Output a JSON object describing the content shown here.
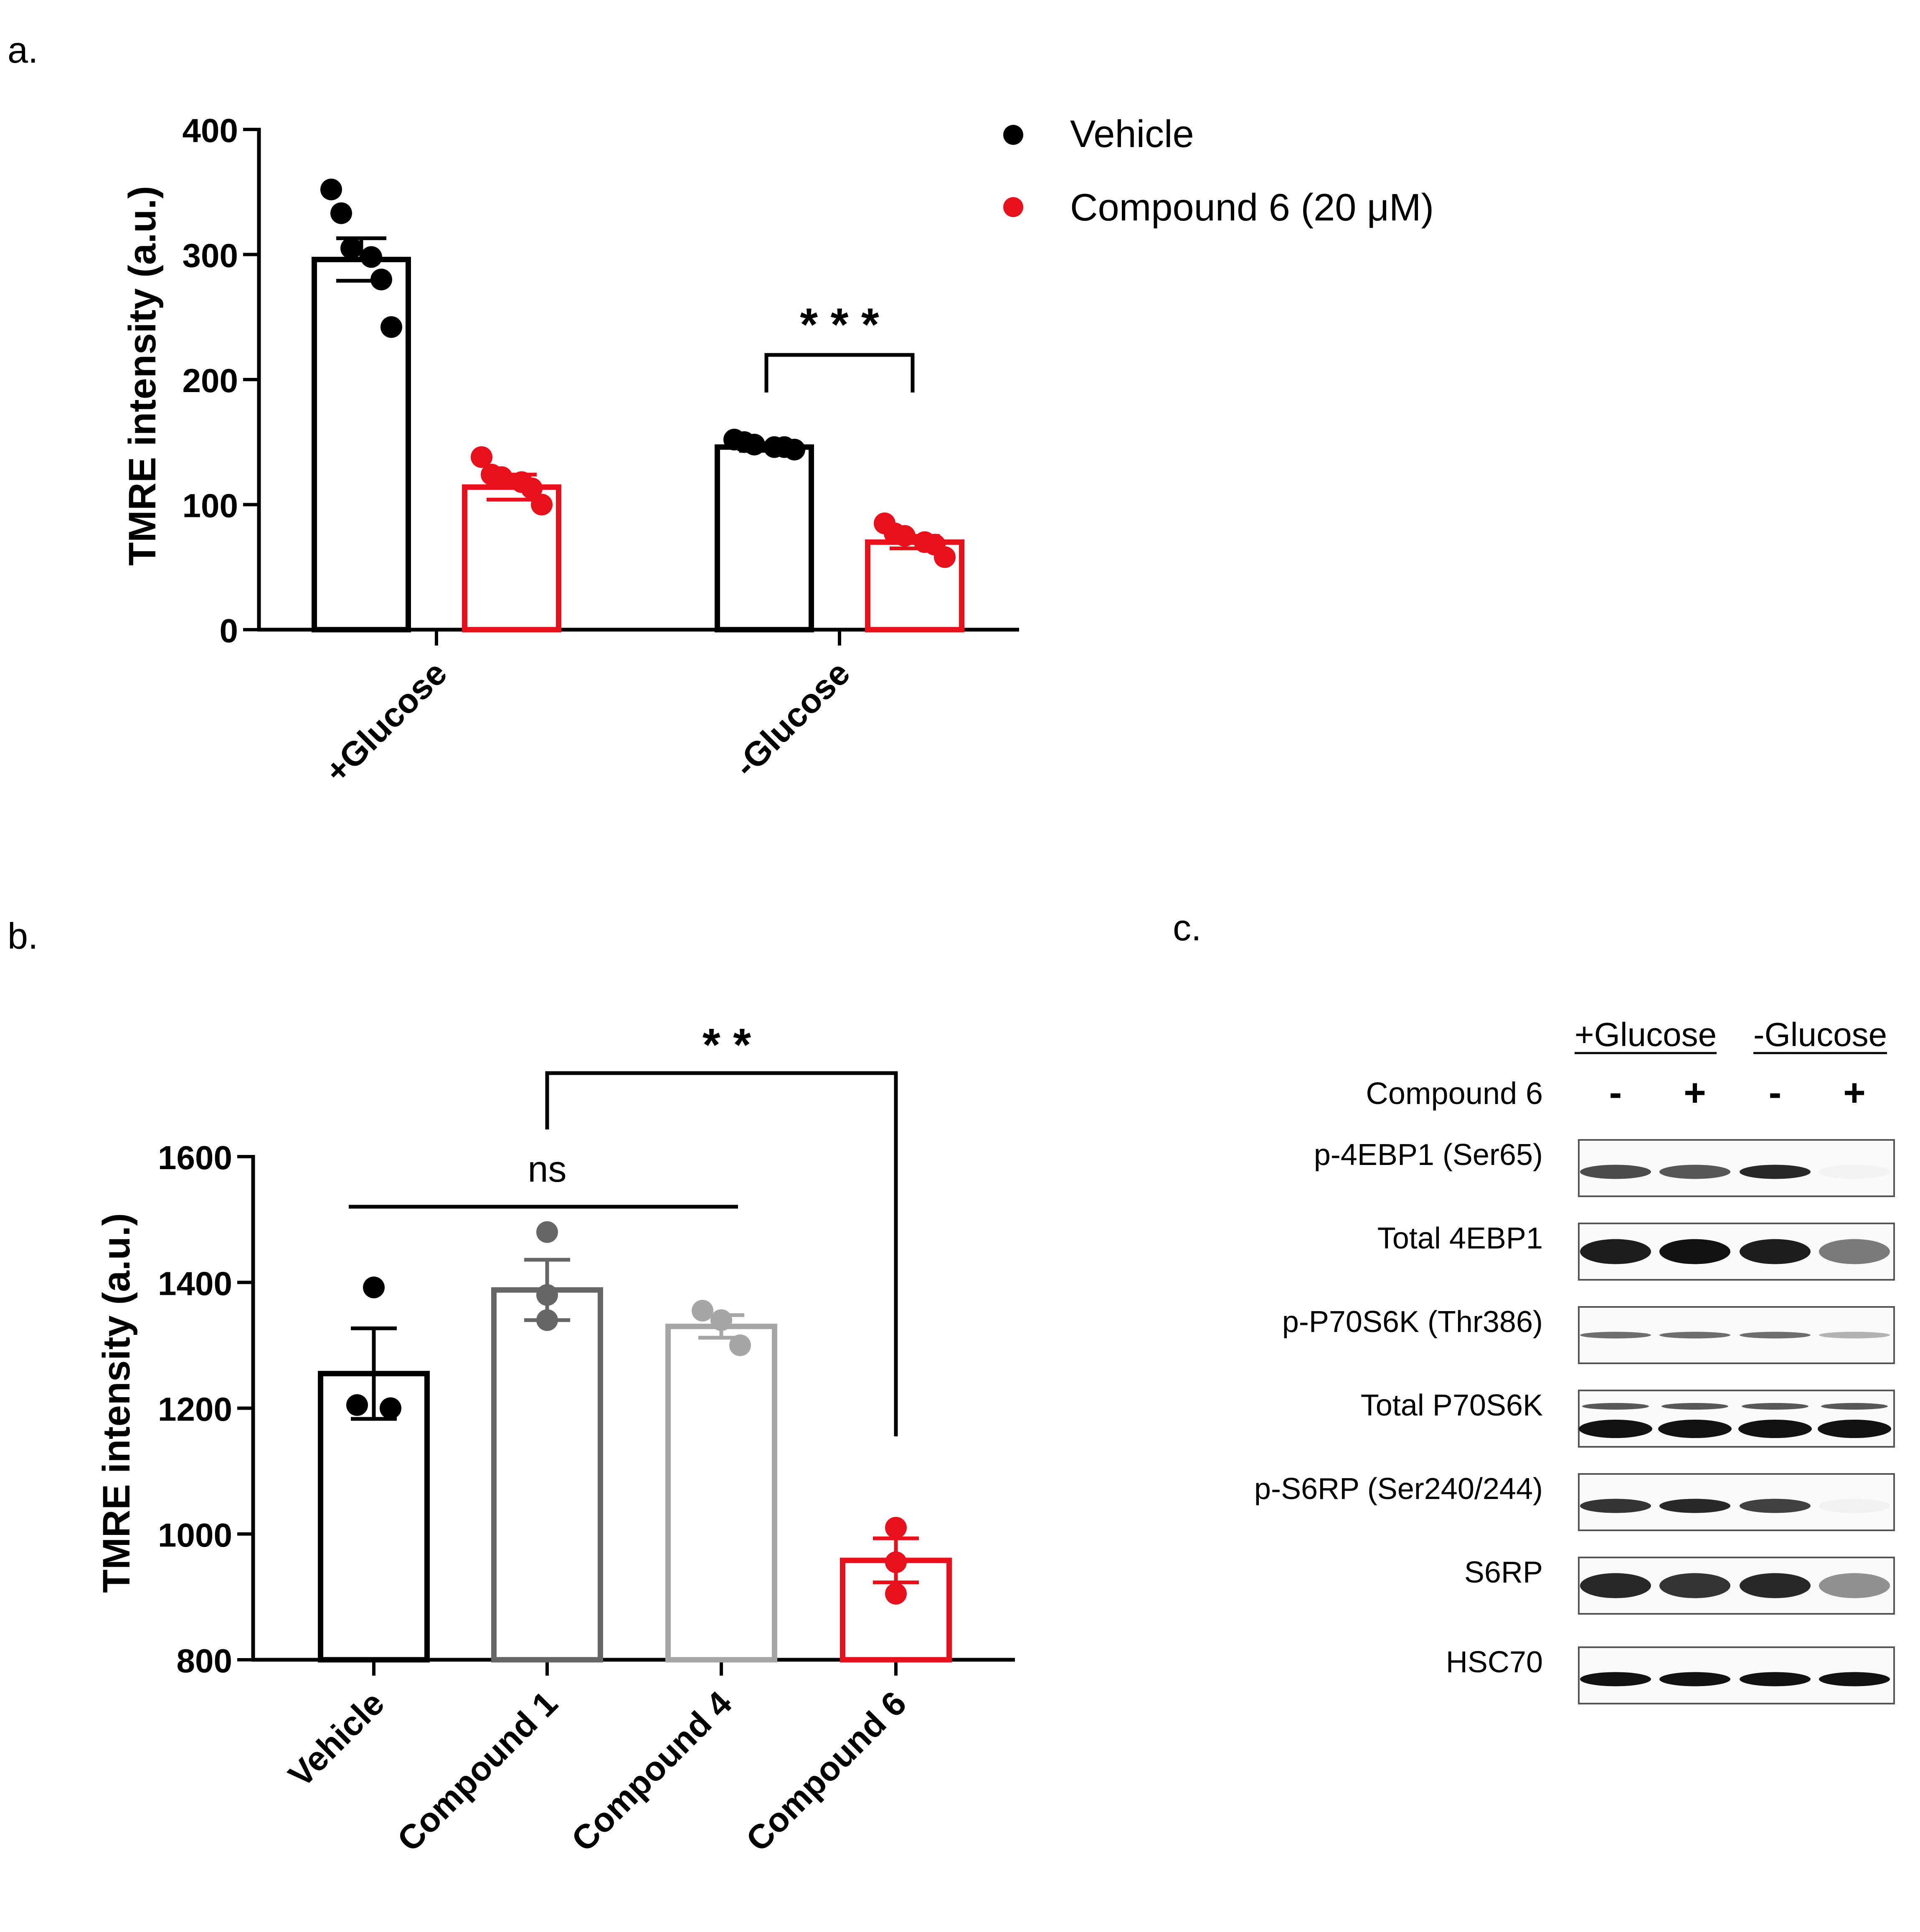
{
  "chart_data": [
    {
      "panel": "a.",
      "type": "bar",
      "ylabel": "TMRE intensity (a.u.)",
      "ylim": [
        0,
        400
      ],
      "yticks": [
        0,
        100,
        200,
        300,
        400
      ],
      "categories": [
        "+Glucose",
        "-Glucose"
      ],
      "legend": {
        "position": "top-right"
      },
      "series": [
        {
          "name": "Vehicle",
          "color": "#000000",
          "values": [
            296,
            146
          ],
          "sem": [
            17,
            3
          ],
          "points": [
            [
              352,
              333,
              305,
              298,
              280,
              242
            ],
            [
              152,
              150,
              148,
              146,
              146,
              144
            ]
          ]
        },
        {
          "name": "Compound 6 (20 μM)",
          "color": "#e8101a",
          "values": [
            114,
            70
          ],
          "sem": [
            10,
            5
          ],
          "points": [
            [
              138,
              124,
              122,
              118,
              113,
              100
            ],
            [
              85,
              77,
              75,
              70,
              68,
              58
            ]
          ]
        }
      ],
      "significance": [
        {
          "label": "* * *",
          "category": "-Glucose",
          "y": 220
        }
      ]
    },
    {
      "panel": "b.",
      "type": "bar",
      "ylabel": "TMRE intensity (a.u.)",
      "ylim": [
        800,
        1600
      ],
      "yticks": [
        800,
        1000,
        1200,
        1400,
        1600
      ],
      "categories": [
        "Vehicle",
        "Compound 1",
        "Compound 4",
        "Compound 6"
      ],
      "colors": [
        "#000000",
        "#666666",
        "#a6a6a6",
        "#e8101a"
      ],
      "values": [
        1255,
        1388,
        1330,
        958
      ],
      "sem": [
        72,
        48,
        18,
        35
      ],
      "points": [
        [
          1392,
          1205,
          1200
        ],
        [
          1480,
          1380,
          1340
        ],
        [
          1355,
          1340,
          1300
        ],
        [
          1010,
          955,
          905
        ]
      ],
      "significance": [
        {
          "label": "ns",
          "from": 0,
          "to": 2,
          "y": 1520
        },
        {
          "label": "* *",
          "from": 1,
          "to": 3,
          "y": 1650
        }
      ]
    }
  ],
  "blot": {
    "panel": "c.",
    "groups": [
      "+Glucose",
      "-Glucose"
    ],
    "treatment_label": "Compound 6",
    "lane_signs": [
      "-",
      "+",
      "-",
      "+"
    ],
    "rows": [
      {
        "label": "p-4EBP1 (Ser65)",
        "intensity": [
          0.75,
          0.7,
          0.9,
          0.03
        ]
      },
      {
        "label": "Total 4EBP1",
        "intensity": [
          0.95,
          1.0,
          0.95,
          0.55
        ]
      },
      {
        "label": "p-P70S6K (Thr386)",
        "intensity": [
          0.6,
          0.6,
          0.6,
          0.3
        ]
      },
      {
        "label": "Total P70S6K",
        "intensity": [
          1.0,
          1.0,
          1.0,
          1.0
        ]
      },
      {
        "label": "p-S6RP (Ser240/244)",
        "intensity": [
          0.85,
          0.9,
          0.8,
          0.04
        ]
      },
      {
        "label": "S6RP",
        "intensity": [
          0.9,
          0.85,
          0.9,
          0.45
        ]
      },
      {
        "label": "HSC70",
        "intensity": [
          1.0,
          1.0,
          1.0,
          1.0
        ]
      }
    ]
  }
}
